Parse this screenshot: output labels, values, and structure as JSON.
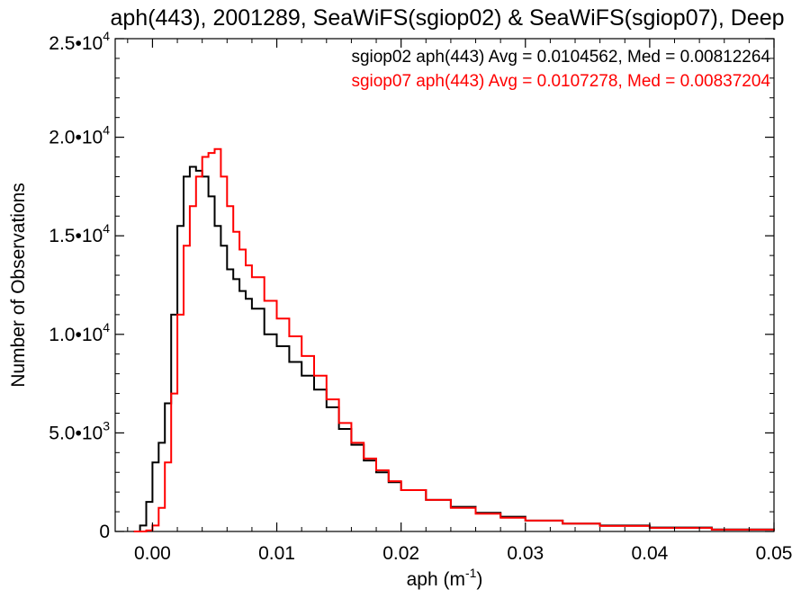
{
  "chart_data": {
    "type": "line",
    "title": "aph(443), 2001289, SeaWiFS(sgiop02) & SeaWiFS(sgiop07), Deep",
    "xlabel": "aph (m",
    "xlabel_exponent": "-1",
    "xlabel_suffix": ")",
    "ylabel": "Number of Observations",
    "xlim": [
      -0.003,
      0.05
    ],
    "ylim": [
      0,
      25000
    ],
    "x_ticks": [
      0.0,
      0.01,
      0.02,
      0.03,
      0.04,
      0.05
    ],
    "x_tick_labels": [
      "0.00",
      "0.01",
      "0.02",
      "0.03",
      "0.04",
      "0.05"
    ],
    "y_ticks": [
      0,
      5000,
      10000,
      15000,
      20000,
      25000
    ],
    "y_tick_labels": [
      {
        "mantissa": "0",
        "exponent": ""
      },
      {
        "mantissa": "5.0•10",
        "exponent": "3"
      },
      {
        "mantissa": "1.0•10",
        "exponent": "4"
      },
      {
        "mantissa": "1.5•10",
        "exponent": "4"
      },
      {
        "mantissa": "2.0•10",
        "exponent": "4"
      },
      {
        "mantissa": "2.5•10",
        "exponent": "4"
      }
    ],
    "grid": false,
    "step_style": "histogram",
    "series": [
      {
        "name": "sgiop02 aph(443) Avg = 0.0104562, Med = 0.00812264",
        "color": "#000000",
        "x": [
          -0.0015,
          -0.001,
          -0.0005,
          0.0,
          0.0005,
          0.001,
          0.0015,
          0.002,
          0.0025,
          0.003,
          0.0035,
          0.004,
          0.0045,
          0.005,
          0.0055,
          0.006,
          0.0065,
          0.007,
          0.0075,
          0.008,
          0.009,
          0.01,
          0.011,
          0.012,
          0.013,
          0.014,
          0.015,
          0.016,
          0.017,
          0.018,
          0.019,
          0.02,
          0.022,
          0.024,
          0.026,
          0.028,
          0.03,
          0.033,
          0.036,
          0.04,
          0.045,
          0.05
        ],
        "values": [
          0,
          300,
          1500,
          3500,
          4500,
          6500,
          11000,
          15500,
          18000,
          18500,
          18300,
          18000,
          17000,
          15500,
          14500,
          13300,
          12800,
          12200,
          11800,
          11300,
          10000,
          9400,
          8600,
          7900,
          7200,
          6300,
          5200,
          4400,
          3600,
          3000,
          2500,
          2100,
          1600,
          1250,
          950,
          750,
          550,
          400,
          300,
          200,
          100,
          50
        ]
      },
      {
        "name": "sgiop07 aph(443) Avg = 0.0107278, Med = 0.00837204",
        "color": "#ff0000",
        "x": [
          -0.0015,
          -0.001,
          -0.0005,
          0.0,
          0.0005,
          0.001,
          0.0015,
          0.002,
          0.0025,
          0.003,
          0.0035,
          0.004,
          0.0045,
          0.005,
          0.0055,
          0.006,
          0.0065,
          0.007,
          0.0075,
          0.008,
          0.009,
          0.01,
          0.011,
          0.012,
          0.013,
          0.014,
          0.015,
          0.016,
          0.017,
          0.018,
          0.019,
          0.02,
          0.022,
          0.024,
          0.026,
          0.028,
          0.03,
          0.033,
          0.036,
          0.04,
          0.045,
          0.05
        ],
        "values": [
          0,
          0,
          50,
          300,
          1200,
          3500,
          7000,
          11000,
          14500,
          16500,
          18000,
          19000,
          19200,
          19400,
          18000,
          16500,
          15200,
          14300,
          13500,
          12900,
          11700,
          10800,
          9900,
          8900,
          7900,
          6700,
          5500,
          4500,
          3700,
          3100,
          2550,
          2100,
          1600,
          1200,
          900,
          700,
          550,
          400,
          280,
          180,
          90,
          40
        ]
      }
    ]
  }
}
